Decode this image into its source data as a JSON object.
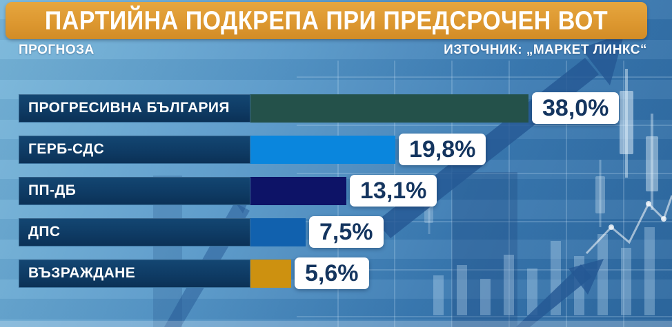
{
  "header": {
    "title": "ПАРТИЙНА ПОДКРЕПА ПРИ ПРЕДСРОЧЕН ВОТ",
    "subtitle": "ПРОГНОЗА",
    "source": "ИЗТОЧНИК: „МАРКЕТ ЛИНКС“"
  },
  "colors": {
    "banner_orange": "#DD9830",
    "label_box_navy": "#0E3A63",
    "value_text_navy": "#14355F",
    "value_box_white": "#FFFFFF",
    "background_blue_top": "#79B7DA",
    "background_blue_bottom": "#2D689F"
  },
  "chart_data": {
    "type": "bar",
    "orientation": "horizontal",
    "unit": "%",
    "title": "ПАРТИЙНА ПОДКРЕПА ПРИ ПРЕДСРОЧЕН ВОТ",
    "subtitle": "ПРОГНОЗА",
    "source": "ИЗТОЧНИК: „МАРКЕТ ЛИНКС“",
    "categories": [
      "ПРОГРЕСИВНА БЪЛГАРИЯ",
      "ГЕРБ-СДС",
      "ПП-ДБ",
      "ДПС",
      "ВЪЗРАЖДАНЕ"
    ],
    "values": [
      38.0,
      19.8,
      13.1,
      7.5,
      5.6
    ],
    "value_labels": [
      "38,0%",
      "19,8%",
      "13,1%",
      "7,5%",
      "5,6%"
    ],
    "bar_colors": [
      "#24514A",
      "#0A86DD",
      "#0D1367",
      "#1161AE",
      "#CD9110"
    ],
    "xlim": [
      0,
      40
    ],
    "grid": false,
    "legend": "none"
  }
}
